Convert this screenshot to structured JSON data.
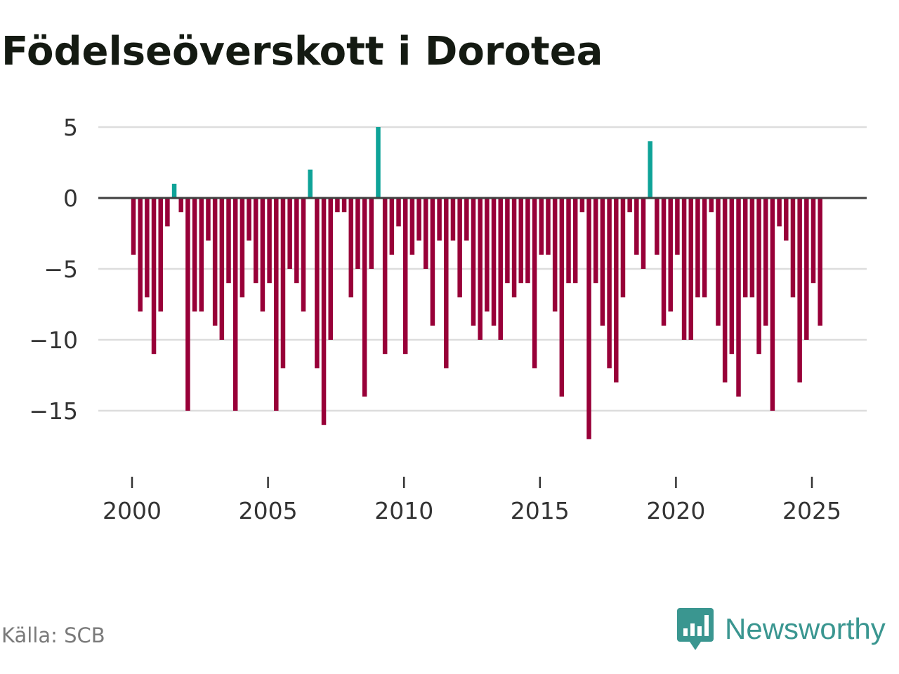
{
  "title": "Födelseöverskott i Dorotea",
  "source": "Källa: SCB",
  "brand": {
    "name": "Newsworthy",
    "logo_icon": "bar-chart-speech-bubble-icon",
    "color": "#3a9690"
  },
  "colors": {
    "positive": "#0fa398",
    "negative": "#980038",
    "grid": "#dddddd",
    "zero_line": "#404040",
    "text": "#333333"
  },
  "chart_data": {
    "type": "bar",
    "title": "Födelseöverskott i Dorotea",
    "xlabel": "",
    "ylabel": "",
    "ylim": [
      -19.5,
      5
    ],
    "yticks": [
      5,
      0,
      -5,
      -10,
      -15
    ],
    "ytick_labels": [
      "5",
      "0",
      "−5",
      "−10",
      "−15"
    ],
    "xlim": [
      1998.8,
      2027.0
    ],
    "xticks": [
      2000,
      2005,
      2010,
      2015,
      2020,
      2025
    ],
    "xtick_labels": [
      "2000",
      "2005",
      "2010",
      "2015",
      "2020",
      "2025"
    ],
    "frequency": "quarterly",
    "start_year": 2000,
    "grid": true,
    "series": [
      {
        "name": "Födelseöverskott",
        "values": [
          -4,
          -8,
          -7,
          -11,
          -8,
          -2,
          1,
          -1,
          -15,
          -8,
          -8,
          -3,
          -9,
          -10,
          -6,
          -15,
          -7,
          -3,
          -6,
          -8,
          -6,
          -15,
          -12,
          -5,
          -6,
          -8,
          2,
          -12,
          -16,
          -10,
          -1,
          -1,
          -7,
          -5,
          -14,
          -5,
          5,
          -11,
          -4,
          -2,
          -11,
          -4,
          -3,
          -5,
          -9,
          -3,
          -12,
          -3,
          -7,
          -3,
          -9,
          -10,
          -8,
          -9,
          -10,
          -6,
          -7,
          -6,
          -6,
          -12,
          -4,
          -4,
          -8,
          -14,
          -6,
          -6,
          -1,
          -17,
          -6,
          -9,
          -12,
          -13,
          -7,
          -1,
          -4,
          -5,
          4,
          -4,
          -9,
          -8,
          -4,
          -10,
          -10,
          -7,
          -7,
          -1,
          -9,
          -13,
          -11,
          -14,
          -7,
          -7,
          -11,
          -9,
          -15,
          -2,
          -3,
          -7,
          -13,
          -10,
          -6,
          -9
        ]
      }
    ]
  }
}
